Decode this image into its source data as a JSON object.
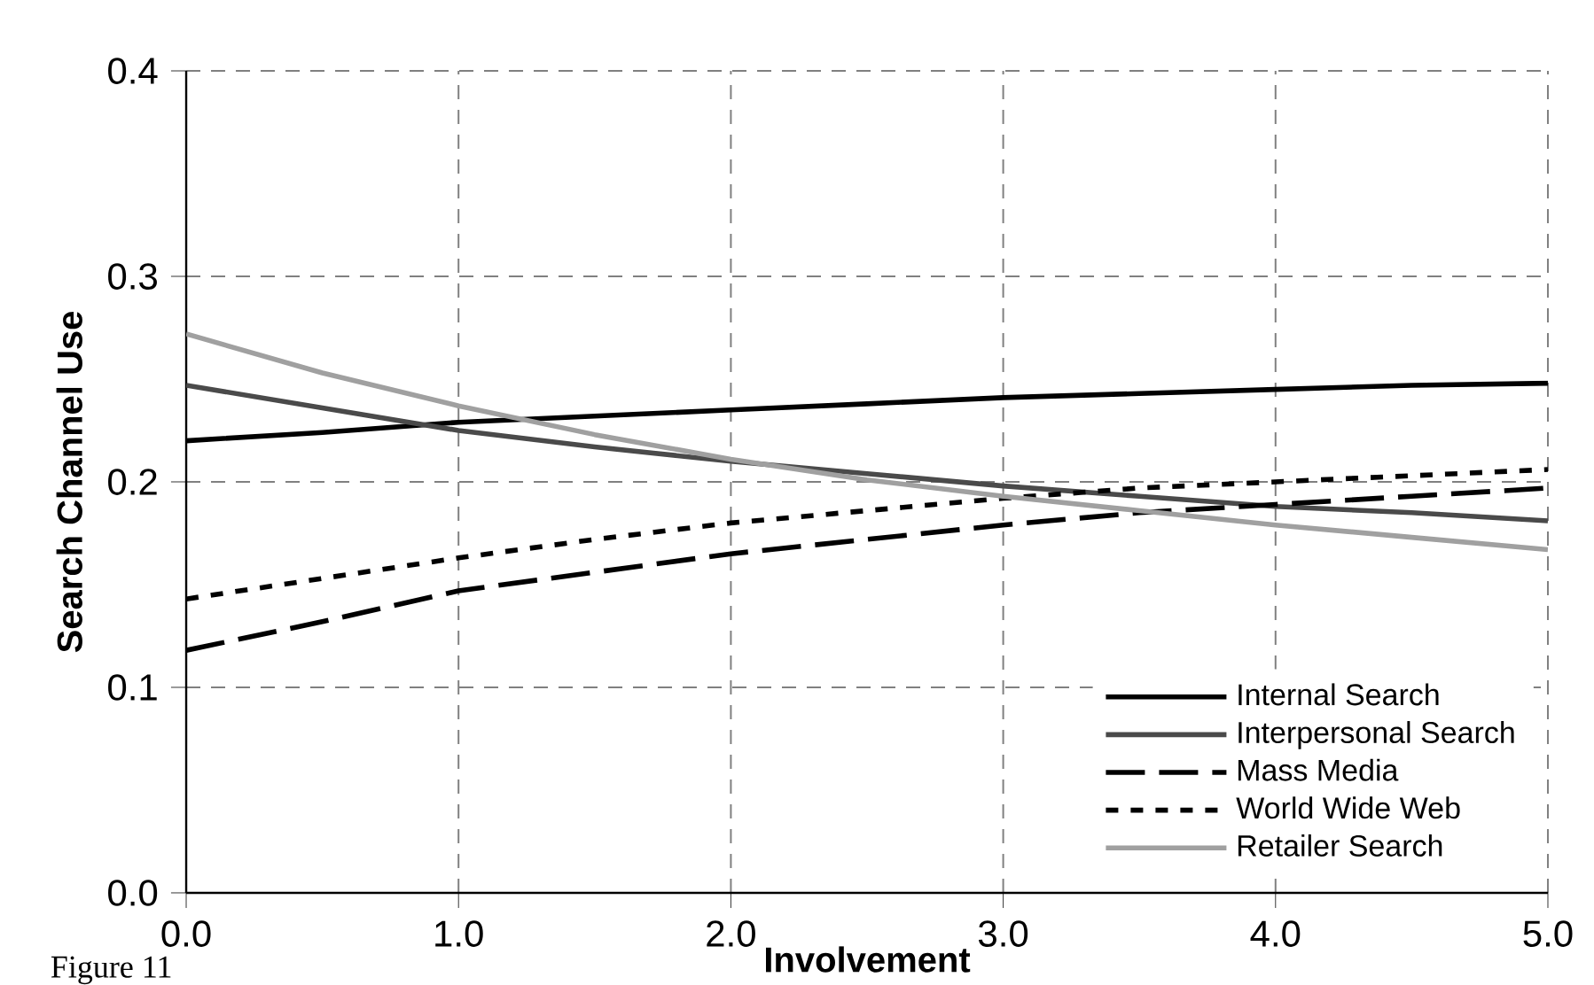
{
  "chart_data": {
    "type": "line",
    "xlabel": "Involvement",
    "ylabel": "Search Channel Use",
    "x": [
      0,
      0.5,
      1,
      1.5,
      2,
      2.5,
      3,
      3.5,
      4,
      4.5,
      5
    ],
    "series": [
      {
        "name": "Internal Search",
        "color": "#000000",
        "line_style": "solid",
        "values": [
          0.22,
          0.224,
          0.229,
          0.232,
          0.235,
          0.238,
          0.241,
          0.243,
          0.245,
          0.247,
          0.248
        ]
      },
      {
        "name": "Interpersonal Search",
        "color": "#4a4a4a",
        "line_style": "solid",
        "values": [
          0.247,
          0.236,
          0.225,
          0.217,
          0.21,
          0.204,
          0.198,
          0.193,
          0.188,
          0.185,
          0.181
        ]
      },
      {
        "name": "Mass Media",
        "color": "#000000",
        "line_style": "dashed",
        "values": [
          0.118,
          0.132,
          0.147,
          0.156,
          0.165,
          0.172,
          0.179,
          0.185,
          0.189,
          0.193,
          0.197
        ]
      },
      {
        "name": "World Wide Web",
        "color": "#000000",
        "line_style": "dotted",
        "values": [
          0.143,
          0.153,
          0.163,
          0.172,
          0.18,
          0.186,
          0.192,
          0.197,
          0.2,
          0.203,
          0.206
        ]
      },
      {
        "name": "Retailer Search",
        "color": "#a0a0a0",
        "line_style": "solid",
        "values": [
          0.272,
          0.253,
          0.237,
          0.223,
          0.211,
          0.201,
          0.193,
          0.186,
          0.179,
          0.173,
          0.167
        ]
      }
    ],
    "xlim": [
      0,
      5
    ],
    "ylim": [
      0,
      0.4
    ],
    "xticks": [
      {
        "value": 0,
        "label": "0.0"
      },
      {
        "value": 1,
        "label": "1.0"
      },
      {
        "value": 2,
        "label": "2.0"
      },
      {
        "value": 3,
        "label": "3.0"
      },
      {
        "value": 4,
        "label": "4.0"
      },
      {
        "value": 5,
        "label": "5.0"
      }
    ],
    "yticks": [
      {
        "value": 0,
        "label": "0.0"
      },
      {
        "value": 0.1,
        "label": "0.1"
      },
      {
        "value": 0.2,
        "label": "0.2"
      },
      {
        "value": 0.3,
        "label": "0.3"
      },
      {
        "value": 0.4,
        "label": "0.4"
      }
    ],
    "grid": true,
    "legend": "bottom right",
    "annotations": [
      "Figure 11"
    ]
  }
}
